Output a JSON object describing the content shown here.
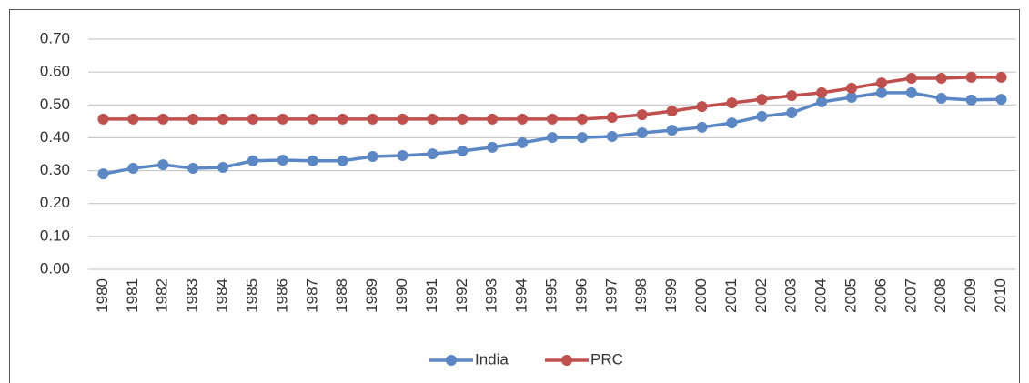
{
  "chart_data": {
    "type": "line",
    "categories": [
      "1980",
      "1981",
      "1982",
      "1983",
      "1984",
      "1985",
      "1986",
      "1987",
      "1988",
      "1989",
      "1990",
      "1991",
      "1992",
      "1993",
      "1994",
      "1995",
      "1996",
      "1997",
      "1998",
      "1999",
      "2000",
      "2001",
      "2002",
      "2003",
      "2004",
      "2005",
      "2006",
      "2007",
      "2008",
      "2009",
      "2010"
    ],
    "series": [
      {
        "name": "India",
        "color": "#5b87c5",
        "values": [
          0.29,
          0.307,
          0.318,
          0.307,
          0.31,
          0.33,
          0.332,
          0.33,
          0.33,
          0.343,
          0.346,
          0.351,
          0.36,
          0.371,
          0.385,
          0.401,
          0.401,
          0.404,
          0.415,
          0.423,
          0.432,
          0.445,
          0.465,
          0.476,
          0.509,
          0.523,
          0.537,
          0.537,
          0.52,
          0.515,
          0.517
        ]
      },
      {
        "name": "PRC",
        "color": "#c0504d",
        "values": [
          0.457,
          0.457,
          0.457,
          0.457,
          0.457,
          0.457,
          0.457,
          0.457,
          0.457,
          0.457,
          0.457,
          0.457,
          0.457,
          0.457,
          0.457,
          0.457,
          0.457,
          0.462,
          0.47,
          0.481,
          0.495,
          0.506,
          0.517,
          0.528,
          0.537,
          0.551,
          0.567,
          0.581,
          0.581,
          0.584,
          0.584
        ]
      }
    ],
    "ylim": [
      0,
      0.7
    ],
    "yticks": [
      {
        "value": 0,
        "label": "0.00"
      },
      {
        "value": 0.1,
        "label": "0.10"
      },
      {
        "value": 0.2,
        "label": "0.20"
      },
      {
        "value": 0.3,
        "label": "0.30"
      },
      {
        "value": 0.4,
        "label": "0.40"
      },
      {
        "value": 0.5,
        "label": "0.50"
      },
      {
        "value": 0.6,
        "label": "0.60"
      },
      {
        "value": 0.7,
        "label": "0.70"
      }
    ],
    "grid": true,
    "legend": "bottom"
  }
}
